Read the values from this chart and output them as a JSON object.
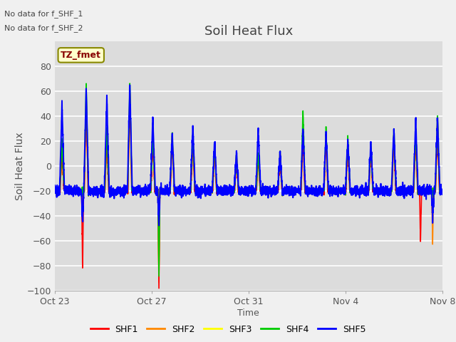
{
  "title": "Soil Heat Flux",
  "ylabel": "Soil Heat Flux",
  "xlabel": "Time",
  "ylim": [
    -100,
    100
  ],
  "yticks": [
    -100,
    -80,
    -60,
    -40,
    -20,
    0,
    20,
    40,
    60,
    80
  ],
  "xtick_labels": [
    "Oct 23",
    "Oct 27",
    "Oct 31",
    "Nov 4",
    "Nov 8"
  ],
  "xtick_positions": [
    0,
    4,
    8,
    12,
    16
  ],
  "annotations": [
    "No data for f_SHF_1",
    "No data for f_SHF_2"
  ],
  "legend_box_label": "TZ_fmet",
  "legend_entries": [
    "SHF1",
    "SHF2",
    "SHF3",
    "SHF4",
    "SHF5"
  ],
  "colors": [
    "#ff0000",
    "#ff8800",
    "#ffff00",
    "#00cc00",
    "#0000ff"
  ],
  "background_color": "#dcdcdc",
  "plot_bg_color": "#dcdcdc",
  "grid_color": "#ffffff",
  "title_fontsize": 13,
  "axis_label_fontsize": 10,
  "tick_fontsize": 9,
  "n_points": 3840,
  "n_days": 16,
  "baseline": -20,
  "daily_peaks": [
    0.3,
    1.3,
    2.15,
    3.1,
    4.05,
    4.85,
    5.7,
    6.6,
    7.5,
    8.4,
    9.3,
    10.25,
    11.2,
    12.1,
    13.05,
    14.0,
    14.9,
    15.8
  ],
  "peak_heights_blue": [
    50,
    63,
    56,
    67,
    39,
    25,
    32,
    20,
    11,
    30,
    11,
    30,
    28,
    22,
    20,
    30,
    38,
    40
  ],
  "peak_heights_green": [
    20,
    68,
    30,
    68,
    25,
    26,
    25,
    18,
    10,
    10,
    12,
    45,
    32,
    25,
    18,
    30,
    30,
    42
  ],
  "peak_heights_yellow": [
    15,
    55,
    25,
    60,
    20,
    23,
    20,
    15,
    8,
    8,
    10,
    25,
    25,
    18,
    15,
    25,
    25,
    38
  ],
  "peak_heights_red": [
    15,
    55,
    25,
    60,
    20,
    23,
    20,
    15,
    8,
    8,
    10,
    25,
    25,
    18,
    15,
    25,
    25,
    35
  ],
  "peak_heights_orange": [
    15,
    55,
    25,
    60,
    20,
    23,
    20,
    15,
    8,
    8,
    10,
    25,
    25,
    18,
    15,
    25,
    25,
    36
  ],
  "neg_spikes_blue": [
    1.15,
    4.3,
    15.6
  ],
  "neg_spikes_vals_blue": [
    -45,
    -48,
    -42
  ],
  "neg_spikes_red": [
    1.15,
    4.3,
    15.1
  ],
  "neg_spikes_vals_red": [
    -83,
    -100,
    -62
  ],
  "neg_spikes_orange": [
    1.15,
    4.3,
    15.6
  ],
  "neg_spikes_vals_orange": [
    -38,
    -95,
    -60
  ],
  "neg_spikes_yellow": [
    4.3
  ],
  "neg_spikes_vals_yellow": [
    -88
  ],
  "neg_spikes_green": [
    4.3
  ],
  "neg_spikes_vals_green": [
    -90
  ]
}
